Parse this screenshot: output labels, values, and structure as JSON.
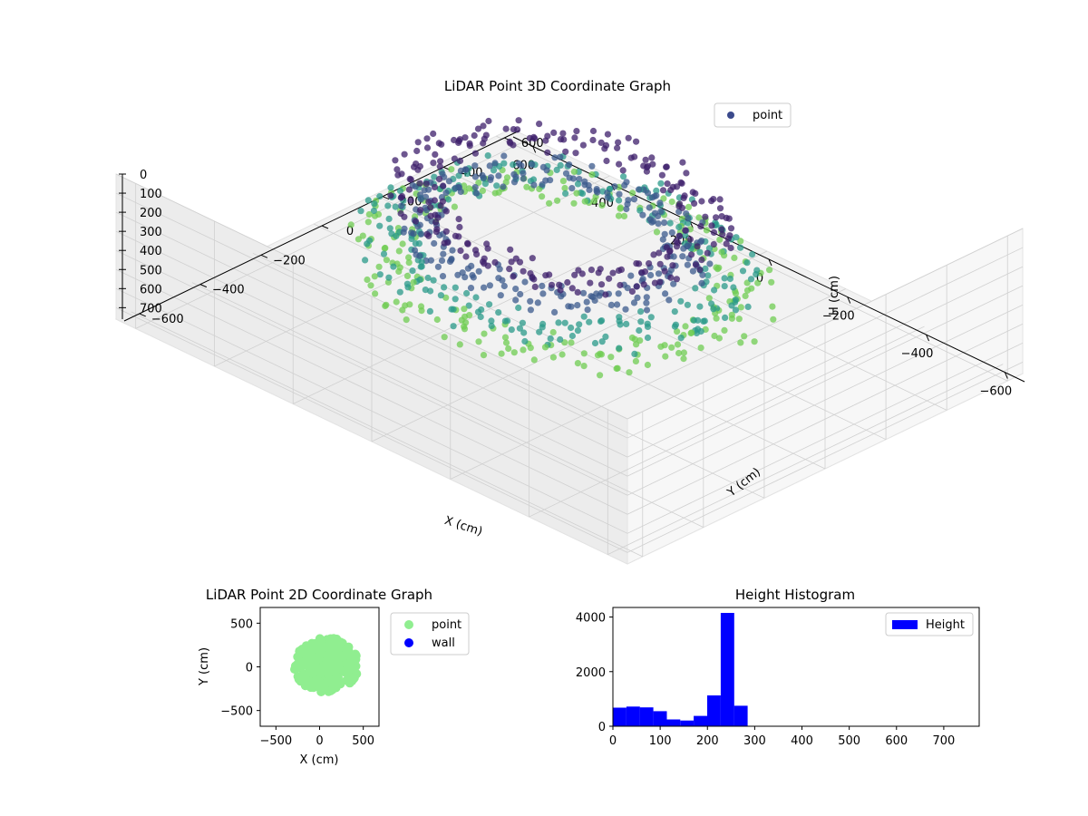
{
  "figure": {
    "background": "#ffffff"
  },
  "chart_data": [
    {
      "type": "scatter3d",
      "title": "LiDAR Point 3D Coordinate Graph",
      "xlabel": "X (cm)",
      "ylabel": "Y (cm)",
      "zlabel": "H (cm)",
      "xticks": [
        "−600",
        "−400",
        "−200",
        "0",
        "200",
        "400",
        "600"
      ],
      "yticks": [
        "−600",
        "−400",
        "−200",
        "0",
        "200",
        "400",
        "600"
      ],
      "zticks": [
        "0",
        "100",
        "200",
        "300",
        "400",
        "500",
        "600",
        "700"
      ],
      "xlim": [
        -650,
        650
      ],
      "ylim": [
        -650,
        650
      ],
      "zlim": [
        760,
        0
      ],
      "z_inverted": true,
      "colormap": "viridis",
      "legend": [
        {
          "label": "point",
          "color": "#3b4a8c"
        }
      ],
      "legend_position": "top-right",
      "grid": true,
      "series": [
        {
          "name": "point",
          "shape": "ring",
          "center_x": 20,
          "center_y": 0,
          "radius": 330,
          "height": 50,
          "color": "#3e1f6b"
        },
        {
          "name": "point",
          "shape": "ring",
          "center_x": 20,
          "center_y": -20,
          "radius": 300,
          "height": 180,
          "color": "#3b5a8c"
        },
        {
          "name": "point",
          "shape": "ring",
          "center_x": 0,
          "center_y": -40,
          "radius": 380,
          "height": 250,
          "color": "#2a9a89"
        },
        {
          "name": "point",
          "shape": "ring",
          "center_x": -10,
          "center_y": -40,
          "radius": 410,
          "height": 320,
          "color": "#6fcc52"
        }
      ]
    },
    {
      "type": "scatter",
      "title": "LiDAR Point 2D Coordinate Graph",
      "xlabel": "X (cm)",
      "ylabel": "Y (cm)",
      "xticks": [
        "−500",
        "0",
        "500"
      ],
      "yticks": [
        "500",
        "0",
        "−500"
      ],
      "xlim": [
        -680,
        680
      ],
      "ylim": [
        -680,
        680
      ],
      "legend_position": "outside-right",
      "series": [
        {
          "name": "point",
          "color": "#90ee90",
          "shape": "blob",
          "x_range": [
            -330,
            480
          ],
          "y_range": [
            -320,
            360
          ]
        },
        {
          "name": "wall",
          "color": "#0000ff",
          "shape": "none"
        }
      ]
    },
    {
      "type": "histogram",
      "title": "Height Histogram",
      "xticks": [
        "0",
        "100",
        "200",
        "300",
        "400",
        "500",
        "600",
        "700"
      ],
      "yticks": [
        "0",
        "2000",
        "4000"
      ],
      "xlim": [
        0,
        775
      ],
      "ylim": [
        0,
        4350
      ],
      "legend_position": "top-right",
      "series": [
        {
          "name": "Height",
          "color": "#0000ff",
          "bins": [
            0,
            28.5,
            57,
            85.5,
            114,
            142.5,
            171,
            199.5,
            228,
            256.5,
            285
          ],
          "counts": [
            680,
            720,
            690,
            550,
            250,
            210,
            380,
            1130,
            4150,
            750
          ]
        }
      ]
    }
  ]
}
